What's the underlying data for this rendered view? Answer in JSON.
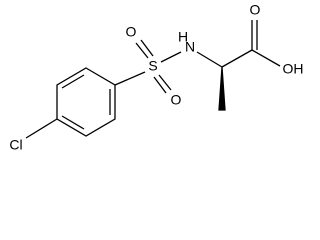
{
  "atoms": {
    "chlorine": "Cl",
    "sulfur": "S",
    "sulfonyl_oxygen_1": "O",
    "sulfonyl_oxygen_2": "O",
    "amine_hydrogen": "H",
    "amine_nitrogen": "N",
    "carbonyl_oxygen": "O",
    "hydroxyl": "OH"
  }
}
